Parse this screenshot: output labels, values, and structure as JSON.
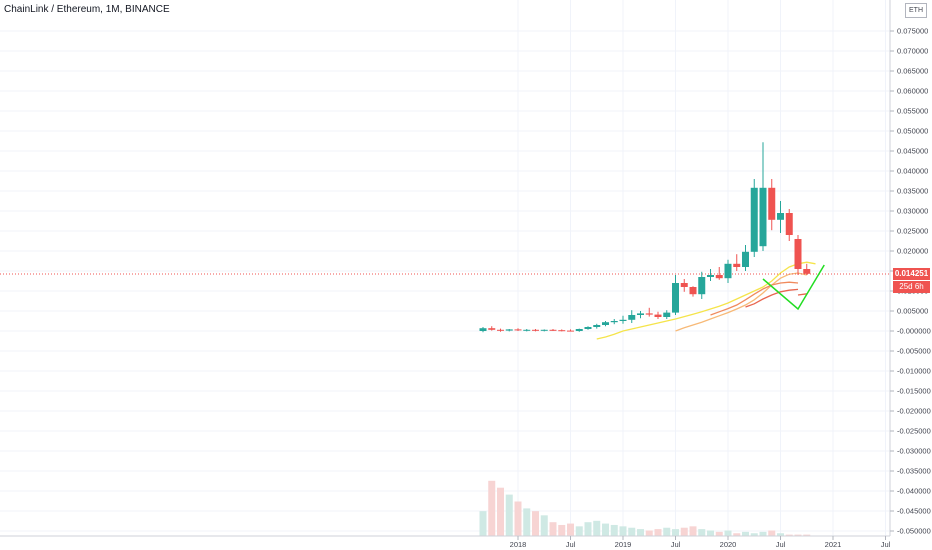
{
  "header": {
    "title": "ChainLink / Ethereum, 1M, BINANCE"
  },
  "price_scale": {
    "currency": "ETH",
    "last_price": "0.014251",
    "countdown": "25d 6h"
  },
  "colors": {
    "up": "#26a69a",
    "down": "#ef5350",
    "up_volume": "#cfe9e4",
    "down_volume": "#f7d4d3",
    "grid": "#f0f3fa",
    "ma_yellow": "#f5e44a",
    "ma_orange1": "#f7b977",
    "ma_orange2": "#f08a5d",
    "ma_red": "#e8654f",
    "projection": "#22dd22",
    "current_price_line": "#ef5350"
  },
  "chart_data": {
    "type": "candlestick",
    "title": "ChainLink / Ethereum, 1M, BINANCE",
    "ylim": [
      -0.05,
      0.08
    ],
    "y_ticks": [
      "0.075000",
      "0.070000",
      "0.065000",
      "0.060000",
      "0.055000",
      "0.050000",
      "0.045000",
      "0.040000",
      "0.035000",
      "0.030000",
      "0.025000",
      "0.020000",
      "0.015000",
      "0.010000",
      "0.005000",
      "-0.000000",
      "-0.005000",
      "-0.010000",
      "-0.015000",
      "-0.020000",
      "-0.025000",
      "-0.030000",
      "-0.035000",
      "-0.040000",
      "-0.045000",
      "-0.050000"
    ],
    "y_tick_values": [
      0.075,
      0.07,
      0.065,
      0.06,
      0.055,
      0.05,
      0.045,
      0.04,
      0.035,
      0.03,
      0.025,
      0.02,
      0.015,
      0.01,
      0.005,
      0,
      -0.005,
      -0.01,
      -0.015,
      -0.02,
      -0.025,
      -0.03,
      -0.035,
      -0.04,
      -0.045,
      -0.05
    ],
    "x_ticks": [
      "2018",
      "Jul",
      "2019",
      "Jul",
      "2020",
      "Jul",
      "2021",
      "Jul"
    ],
    "x_tick_months": [
      0,
      6,
      12,
      18,
      24,
      30,
      36,
      42
    ],
    "start_month": -4,
    "candles": [
      {
        "o": 0.0,
        "h": 0.001,
        "l": -0.0003,
        "c": 0.0007
      },
      {
        "o": 0.0007,
        "h": 0.0012,
        "l": 0.0001,
        "c": 0.0003
      },
      {
        "o": 0.0003,
        "h": 0.0006,
        "l": -0.0002,
        "c": 0.0001
      },
      {
        "o": 0.0001,
        "h": 0.0005,
        "l": -0.0001,
        "c": 0.0004
      },
      {
        "o": 0.0004,
        "h": 0.0007,
        "l": 0.0,
        "c": 0.0002
      },
      {
        "o": 0.0002,
        "h": 0.0005,
        "l": -0.0001,
        "c": 0.0003
      },
      {
        "o": 0.0003,
        "h": 0.0005,
        "l": -0.0001,
        "c": 0.0001
      },
      {
        "o": 0.0001,
        "h": 0.0004,
        "l": -0.0001,
        "c": 0.0003
      },
      {
        "o": 0.0003,
        "h": 0.0005,
        "l": 0.0,
        "c": 0.0002
      },
      {
        "o": 0.0002,
        "h": 0.0004,
        "l": -0.0001,
        "c": 0.0001
      },
      {
        "o": 0.0001,
        "h": 0.0004,
        "l": -0.0001,
        "c": 0.0
      },
      {
        "o": 0.0,
        "h": 0.0006,
        "l": -0.0002,
        "c": 0.0005
      },
      {
        "o": 0.0005,
        "h": 0.0012,
        "l": 0.0003,
        "c": 0.001
      },
      {
        "o": 0.001,
        "h": 0.0018,
        "l": 0.0006,
        "c": 0.0015
      },
      {
        "o": 0.0015,
        "h": 0.0025,
        "l": 0.0012,
        "c": 0.0022
      },
      {
        "o": 0.0022,
        "h": 0.003,
        "l": 0.0017,
        "c": 0.0025
      },
      {
        "o": 0.0025,
        "h": 0.0038,
        "l": 0.0018,
        "c": 0.0028
      },
      {
        "o": 0.0028,
        "h": 0.0052,
        "l": 0.002,
        "c": 0.004
      },
      {
        "o": 0.004,
        "h": 0.005,
        "l": 0.0032,
        "c": 0.0044
      },
      {
        "o": 0.0044,
        "h": 0.0058,
        "l": 0.0036,
        "c": 0.0041
      },
      {
        "o": 0.0041,
        "h": 0.0048,
        "l": 0.003,
        "c": 0.0035
      },
      {
        "o": 0.0035,
        "h": 0.0052,
        "l": 0.003,
        "c": 0.0046
      },
      {
        "o": 0.0046,
        "h": 0.014,
        "l": 0.004,
        "c": 0.012
      },
      {
        "o": 0.012,
        "h": 0.013,
        "l": 0.0098,
        "c": 0.011
      },
      {
        "o": 0.011,
        "h": 0.0112,
        "l": 0.0086,
        "c": 0.0092
      },
      {
        "o": 0.0092,
        "h": 0.0148,
        "l": 0.008,
        "c": 0.0135
      },
      {
        "o": 0.0135,
        "h": 0.0155,
        "l": 0.0125,
        "c": 0.014
      },
      {
        "o": 0.014,
        "h": 0.016,
        "l": 0.0128,
        "c": 0.0132
      },
      {
        "o": 0.0132,
        "h": 0.0178,
        "l": 0.012,
        "c": 0.0168
      },
      {
        "o": 0.0168,
        "h": 0.0192,
        "l": 0.015,
        "c": 0.016
      },
      {
        "o": 0.016,
        "h": 0.0215,
        "l": 0.015,
        "c": 0.0198
      },
      {
        "o": 0.0198,
        "h": 0.038,
        "l": 0.0185,
        "c": 0.0358
      },
      {
        "o": 0.0212,
        "h": 0.0472,
        "l": 0.02,
        "c": 0.0358
      },
      {
        "o": 0.0358,
        "h": 0.038,
        "l": 0.0252,
        "c": 0.0278
      },
      {
        "o": 0.0278,
        "h": 0.0325,
        "l": 0.0245,
        "c": 0.0295
      },
      {
        "o": 0.0295,
        "h": 0.0305,
        "l": 0.0225,
        "c": 0.024
      },
      {
        "o": 0.023,
        "h": 0.024,
        "l": 0.014,
        "c": 0.0155
      },
      {
        "o": 0.0155,
        "h": 0.0168,
        "l": 0.014,
        "c": 0.0143
      }
    ],
    "moving_averages": [
      {
        "color_key": "ma_yellow",
        "start": 13,
        "values": [
          -0.002,
          -0.0015,
          -0.0008,
          0.0,
          0.0005,
          0.001,
          0.0015,
          0.002,
          0.0025,
          0.003,
          0.0036,
          0.0042,
          0.0048,
          0.0055,
          0.0062,
          0.007,
          0.008,
          0.009,
          0.01,
          0.011,
          0.0125,
          0.0145,
          0.016,
          0.0168,
          0.0172,
          0.0168
        ]
      },
      {
        "color_key": "ma_orange1",
        "start": 22,
        "values": [
          0.0,
          0.0008,
          0.0015,
          0.0022,
          0.003,
          0.0038,
          0.0046,
          0.0055,
          0.0065,
          0.0078,
          0.0095,
          0.0115,
          0.0132,
          0.0142,
          0.0145,
          0.014
        ]
      },
      {
        "color_key": "ma_orange2",
        "start": 26,
        "values": [
          0.004,
          0.0048,
          0.0056,
          0.0065,
          0.0078,
          0.0092,
          0.0105,
          0.0115,
          0.012,
          0.0122,
          0.012
        ]
      },
      {
        "color_key": "ma_red",
        "start": 30,
        "values": [
          0.006,
          0.0068,
          0.008,
          0.009,
          0.0098,
          0.0102,
          0.0104
        ]
      },
      {
        "color_key": "ma_red",
        "start": 36,
        "values": [
          0.009,
          0.0093
        ]
      }
    ],
    "projection": [
      [
        32,
        0.013
      ],
      [
        36,
        0.0055
      ],
      [
        39,
        0.0165
      ]
    ],
    "volume_max_value": 1.0,
    "volumes": [
      0.18,
      0.4,
      0.35,
      0.3,
      0.25,
      0.2,
      0.18,
      0.15,
      0.1,
      0.08,
      0.09,
      0.07,
      0.1,
      0.11,
      0.09,
      0.08,
      0.07,
      0.06,
      0.05,
      0.04,
      0.05,
      0.06,
      0.05,
      0.06,
      0.07,
      0.05,
      0.04,
      0.03,
      0.04,
      0.02,
      0.03,
      0.02,
      0.03,
      0.04,
      0.02,
      0.01,
      0.01,
      0.01
    ]
  }
}
